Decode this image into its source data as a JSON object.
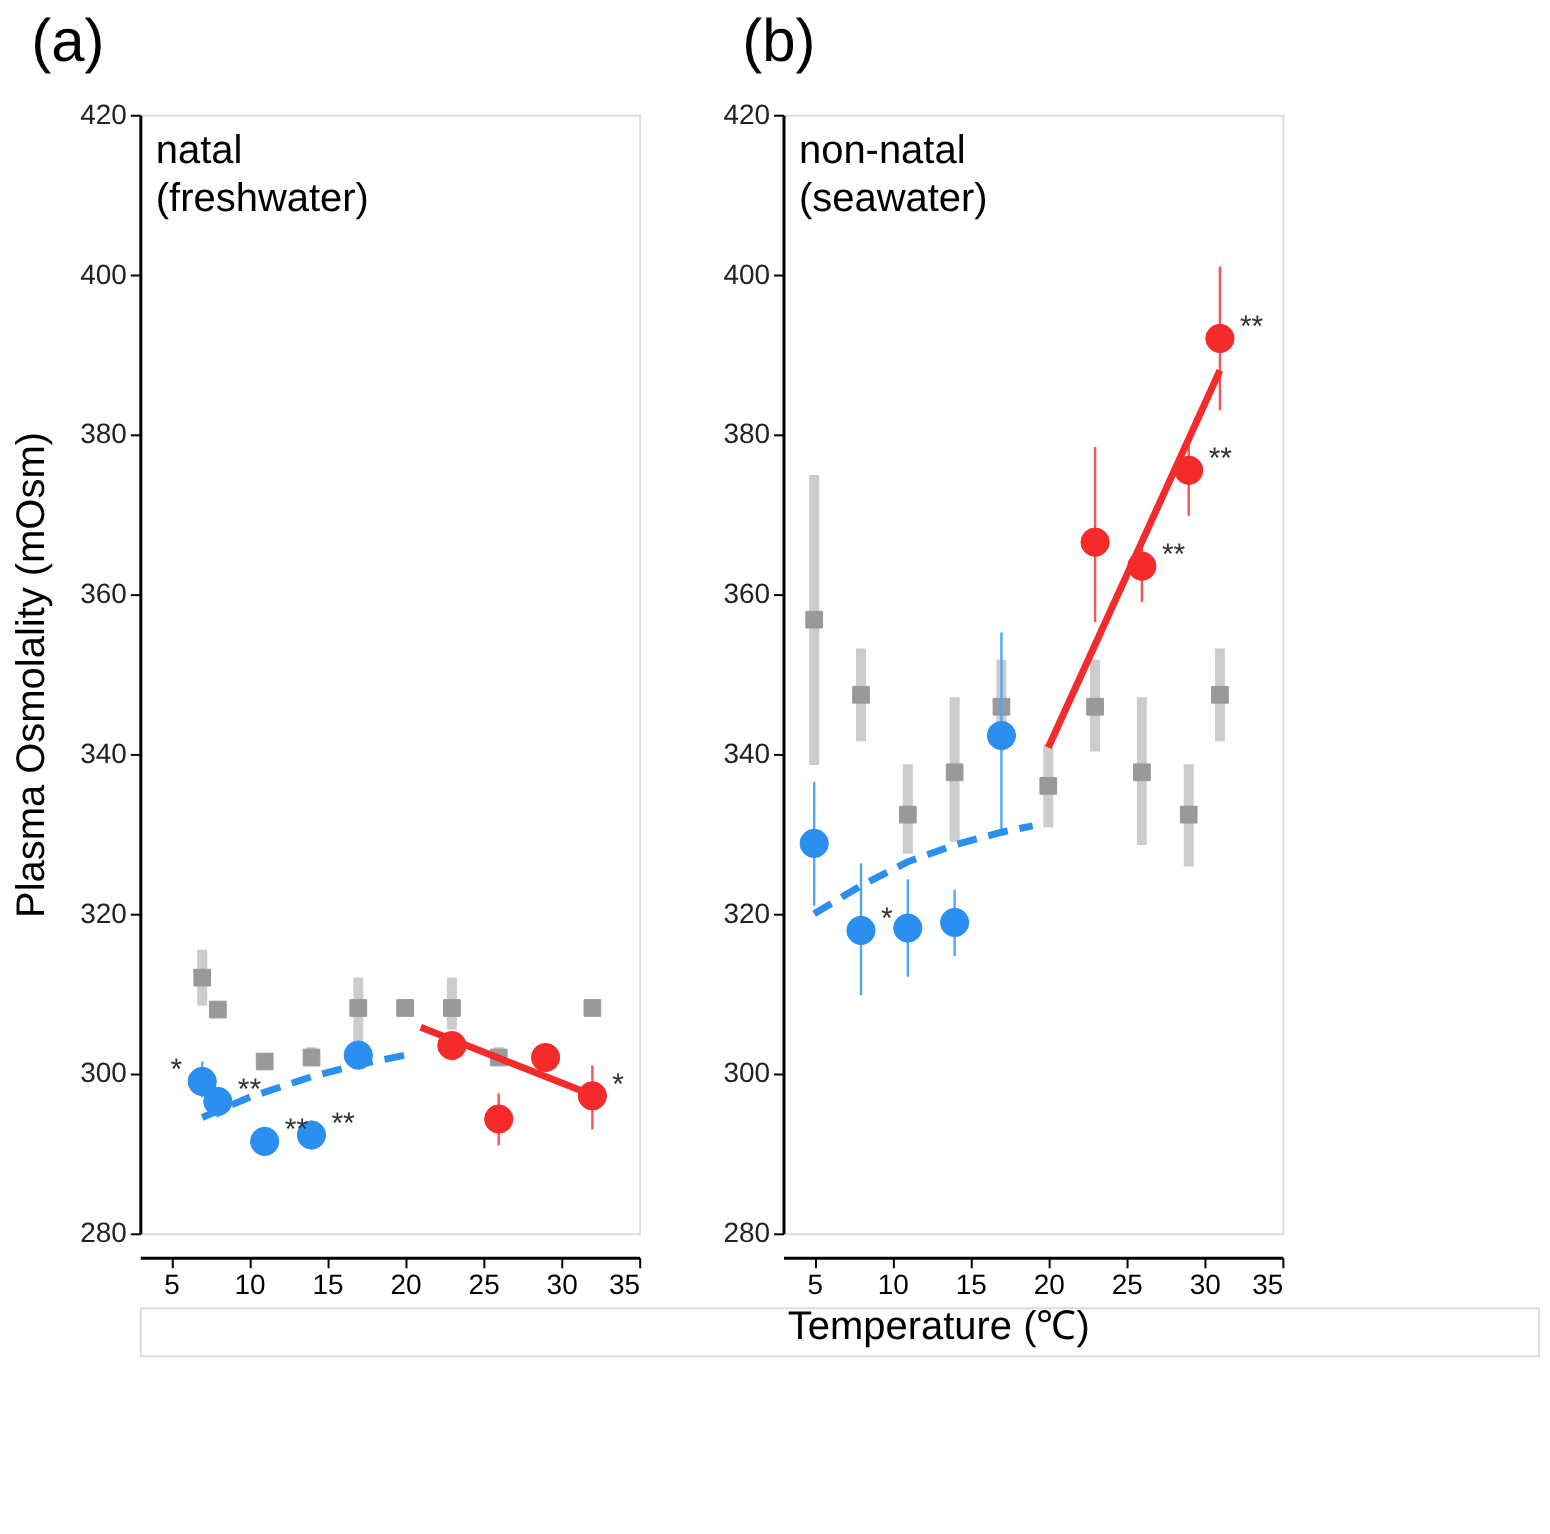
{
  "chart_data": [
    {
      "type": "scatter",
      "title": "(a)",
      "ylabel": "Plasma Osmolality (mOsm)",
      "xlabel": "Temperature (℃)",
      "xlim": [
        3,
        35
      ],
      "xticks": [
        5,
        10,
        15,
        20,
        25,
        30,
        35
      ],
      "ylim": [
        280,
        420
      ],
      "yticks": [
        280,
        300,
        320,
        340,
        360,
        380,
        400,
        420
      ],
      "grid": false,
      "annotations": [
        "natal",
        "(freshwater)",
        {
          "text": "*",
          "x": 7,
          "y": 299
        },
        {
          "text": "**",
          "x": 8,
          "y": 296.5
        },
        {
          "text": "**",
          "x": 11,
          "y": 291.5
        },
        {
          "text": "**",
          "x": 14,
          "y": 292.3
        },
        {
          "text": "*",
          "x": 32,
          "y": 297.2
        }
      ],
      "series": [
        {
          "marker": "square",
          "color": "#999999",
          "x": [
            7,
            8,
            11,
            14,
            17,
            20,
            23,
            26,
            32
          ],
          "values": [
            312,
            308,
            301.5,
            302,
            308.2,
            308.2,
            308.2,
            302,
            308.2
          ],
          "errors": [
            [
              308.5,
              315.5
            ],
            null,
            null,
            [
              301,
              303.3
            ],
            [
              304,
              312
            ],
            null,
            [
              305.5,
              312
            ],
            [
              301,
              303.3
            ],
            null
          ]
        },
        {
          "marker": "circle",
          "color": "#2b8ff0",
          "x": [
            7,
            8,
            11,
            14,
            17
          ],
          "values": [
            299,
            296.5,
            291.5,
            292.3,
            302.3
          ],
          "errors": [
            [
              297,
              301.5
            ],
            [
              294.5,
              298
            ],
            null,
            null,
            null
          ]
        },
        {
          "marker": "circle",
          "color": "#f52a2a",
          "x": [
            23,
            26,
            29,
            32
          ],
          "values": [
            303.5,
            294.3,
            302,
            297.2
          ],
          "errors": [
            null,
            [
              291,
              297.5
            ],
            [
              301,
              303.5
            ],
            [
              293,
              301
            ]
          ]
        },
        {
          "type": "line",
          "line_style": "dashed",
          "color": "#2b8ff0",
          "x": [
            7,
            10,
            14,
            17,
            20
          ],
          "values": [
            294.5,
            297,
            299.6,
            301.1,
            302.3
          ]
        },
        {
          "type": "line",
          "line_style": "solid",
          "color": "#f52a2a",
          "x": [
            21,
            32
          ],
          "values": [
            305.8,
            297.3
          ]
        }
      ]
    },
    {
      "type": "scatter",
      "title": "(b)",
      "xlim": [
        3,
        35
      ],
      "xticks": [
        5,
        10,
        15,
        20,
        25,
        30,
        35
      ],
      "ylim": [
        280,
        420
      ],
      "yticks": [
        280,
        300,
        320,
        340,
        360,
        380,
        400,
        420
      ],
      "grid": false,
      "annotations": [
        "non-natal",
        "(seawater)",
        {
          "text": "*",
          "x": 8,
          "y": 317.9
        },
        {
          "text": "**",
          "x": 26,
          "y": 363.5
        },
        {
          "text": "**",
          "x": 29,
          "y": 375.5
        },
        {
          "text": "**",
          "x": 31,
          "y": 392
        }
      ],
      "series": [
        {
          "marker": "square",
          "color": "#999999",
          "x": [
            5,
            8,
            11,
            14,
            17,
            20,
            23,
            26,
            29,
            31
          ],
          "values": [
            356.8,
            347.4,
            332.4,
            337.7,
            345.9,
            336,
            345.9,
            337.7,
            332.4,
            347.4
          ],
          "errors": [
            [
              338.6,
              374.9
            ],
            [
              341.6,
              353.2
            ],
            [
              327.5,
              338.7
            ],
            [
              329,
              347.1
            ],
            [
              340.8,
              351.8
            ],
            [
              330.8,
              341.2
            ],
            [
              340.3,
              351.8
            ],
            [
              328.6,
              347.1
            ],
            [
              325.9,
              338.7
            ],
            [
              341.6,
              353.2
            ]
          ]
        },
        {
          "marker": "circle",
          "color": "#2b8ff0",
          "x": [
            5,
            8,
            11,
            14,
            17
          ],
          "values": [
            328.8,
            317.9,
            318.2,
            318.9,
            342.3
          ],
          "errors": [
            [
              321,
              336.5
            ],
            [
              309.8,
              326.3
            ],
            [
              312.1,
              324.3
            ],
            [
              314.7,
              323
            ],
            [
              329.8,
              355.2
            ]
          ]
        },
        {
          "marker": "circle",
          "color": "#f52a2a",
          "x": [
            23,
            26,
            29,
            31
          ],
          "values": [
            366.5,
            363.5,
            375.5,
            392
          ],
          "errors": [
            [
              356.5,
              378.4
            ],
            [
              359,
              367
            ],
            [
              369.8,
              379.2
            ],
            [
              383,
              401
            ]
          ]
        },
        {
          "type": "line",
          "line_style": "dashed",
          "color": "#2b8ff0",
          "x": [
            5,
            8,
            11,
            14,
            17,
            19
          ],
          "values": [
            320,
            323.5,
            326.5,
            328.6,
            330.2,
            331
          ]
        },
        {
          "type": "line",
          "line_style": "solid",
          "color": "#f52a2a",
          "x": [
            20,
            31
          ],
          "values": [
            340.8,
            388
          ]
        }
      ]
    }
  ]
}
